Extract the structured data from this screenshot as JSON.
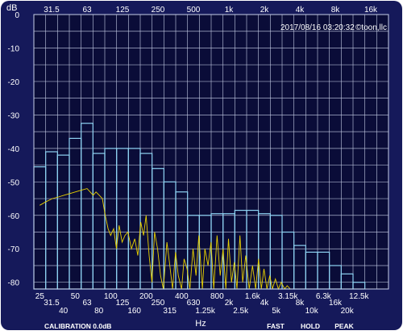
{
  "ui": {
    "unit_label": "dB",
    "timestamp": "2017/08/16 03:20:32",
    "copyright": "©toon,llc",
    "x_axis_label": "Hz",
    "calibration": "CALIBRATION 0.0dB",
    "modes": [
      "FAST",
      "HOLD",
      "PEAK"
    ],
    "colors": {
      "background": "#0a0c38",
      "frame": "#15195a",
      "grid": "#c8cfe8",
      "bar_outline": "#8ed2f2",
      "trace": "#e8d100",
      "text": "#ffffff"
    }
  },
  "chart_data": {
    "type": "bar",
    "ylabel": "dB",
    "xlabel": "Hz",
    "ylim": [
      -82,
      0
    ],
    "y_ticks": [
      "0",
      "-10",
      "-20",
      "-30",
      "-40",
      "-50",
      "-60",
      "-70",
      "-80"
    ],
    "top_ticks": [
      "31.5",
      "63",
      "125",
      "250",
      "500",
      "1k",
      "2k",
      "4k",
      "8k",
      "16k"
    ],
    "bottom_ticks_upper": [
      "25",
      "50",
      "100",
      "200",
      "400",
      "800",
      "1.6k",
      "3.15k",
      "6.3k",
      "12.5k"
    ],
    "bottom_ticks_lower": [
      "31.5",
      "40",
      "63",
      "80",
      "125",
      "160",
      "250",
      "315",
      "630",
      "1.25k",
      "2k",
      "2.5k",
      "4k",
      "5k",
      "8k",
      "10k",
      "16k",
      "20k"
    ],
    "categories": [
      "25",
      "31.5",
      "40",
      "50",
      "63",
      "80",
      "100",
      "125",
      "160",
      "200",
      "250",
      "315",
      "400",
      "500",
      "630",
      "800",
      "1k",
      "1.25k",
      "1.6k",
      "2k",
      "2.5k",
      "3.15k",
      "4k",
      "5k",
      "6.3k",
      "8k",
      "10k",
      "12.5k",
      "16k",
      "20k"
    ],
    "series": [
      {
        "values": [
          -45.5,
          -41,
          -42,
          -37,
          -32.5,
          -41.5,
          -40,
          -40,
          -40,
          -41.5,
          -46,
          -50,
          -53,
          -60,
          -60,
          -59.5,
          -59.5,
          -58.5,
          -58.5,
          -59.5,
          -60,
          -65,
          -69,
          -71,
          -71,
          -75,
          -77.5,
          -80,
          -82,
          -82
        ]
      }
    ],
    "trace": [
      {
        "f": 25,
        "db": -57
      },
      {
        "f": 28,
        "db": -56
      },
      {
        "f": 32,
        "db": -55
      },
      {
        "f": 36,
        "db": -54.5
      },
      {
        "f": 40,
        "db": -54
      },
      {
        "f": 45,
        "db": -53.5
      },
      {
        "f": 50,
        "db": -53
      },
      {
        "f": 56,
        "db": -52.5
      },
      {
        "f": 63,
        "db": -52
      },
      {
        "f": 67,
        "db": -53
      },
      {
        "f": 71,
        "db": -54
      },
      {
        "f": 75,
        "db": -53
      },
      {
        "f": 80,
        "db": -54
      },
      {
        "f": 85,
        "db": -55
      },
      {
        "f": 90,
        "db": -60
      },
      {
        "f": 95,
        "db": -64
      },
      {
        "f": 100,
        "db": -66
      },
      {
        "f": 106,
        "db": -64
      },
      {
        "f": 112,
        "db": -70
      },
      {
        "f": 118,
        "db": -63
      },
      {
        "f": 125,
        "db": -68
      },
      {
        "f": 132,
        "db": -66
      },
      {
        "f": 140,
        "db": -65
      },
      {
        "f": 150,
        "db": -70
      },
      {
        "f": 160,
        "db": -67
      },
      {
        "f": 170,
        "db": -72
      },
      {
        "f": 180,
        "db": -62
      },
      {
        "f": 190,
        "db": -66
      },
      {
        "f": 200,
        "db": -60
      },
      {
        "f": 212,
        "db": -72
      },
      {
        "f": 224,
        "db": -80
      },
      {
        "f": 236,
        "db": -65
      },
      {
        "f": 250,
        "db": -70
      },
      {
        "f": 265,
        "db": -78
      },
      {
        "f": 280,
        "db": -82
      },
      {
        "f": 300,
        "db": -68
      },
      {
        "f": 315,
        "db": -74
      },
      {
        "f": 335,
        "db": -82
      },
      {
        "f": 355,
        "db": -71
      },
      {
        "f": 375,
        "db": -78
      },
      {
        "f": 400,
        "db": -82
      },
      {
        "f": 420,
        "db": -73
      },
      {
        "f": 445,
        "db": -76
      },
      {
        "f": 470,
        "db": -82
      },
      {
        "f": 500,
        "db": -70
      },
      {
        "f": 530,
        "db": -78
      },
      {
        "f": 560,
        "db": -66
      },
      {
        "f": 600,
        "db": -82
      },
      {
        "f": 630,
        "db": -70
      },
      {
        "f": 670,
        "db": -75
      },
      {
        "f": 710,
        "db": -68
      },
      {
        "f": 750,
        "db": -82
      },
      {
        "f": 800,
        "db": -66
      },
      {
        "f": 850,
        "db": -78
      },
      {
        "f": 900,
        "db": -70
      },
      {
        "f": 950,
        "db": -82
      },
      {
        "f": 1000,
        "db": -67
      },
      {
        "f": 1060,
        "db": -80
      },
      {
        "f": 1120,
        "db": -74
      },
      {
        "f": 1180,
        "db": -82
      },
      {
        "f": 1250,
        "db": -66
      },
      {
        "f": 1320,
        "db": -80
      },
      {
        "f": 1400,
        "db": -72
      },
      {
        "f": 1500,
        "db": -82
      },
      {
        "f": 1600,
        "db": -75
      },
      {
        "f": 1700,
        "db": -82
      },
      {
        "f": 1800,
        "db": -73
      },
      {
        "f": 1900,
        "db": -82
      },
      {
        "f": 2000,
        "db": -76
      },
      {
        "f": 2120,
        "db": -82
      },
      {
        "f": 2240,
        "db": -78
      },
      {
        "f": 2360,
        "db": -82
      },
      {
        "f": 2500,
        "db": -79
      },
      {
        "f": 2650,
        "db": -82
      },
      {
        "f": 2800,
        "db": -80
      },
      {
        "f": 3000,
        "db": -82
      },
      {
        "f": 3150,
        "db": -81
      },
      {
        "f": 3350,
        "db": -82
      }
    ]
  }
}
